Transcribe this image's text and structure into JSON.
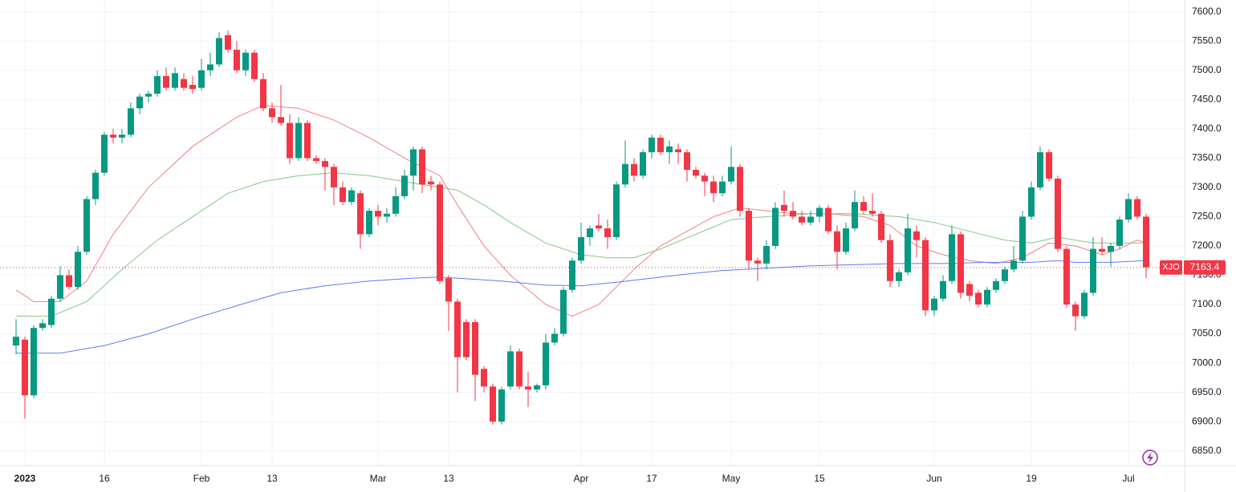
{
  "chart_data": {
    "type": "candlestick",
    "symbol": "XJO",
    "last_price": 7163.4,
    "up_color": "#089981",
    "down_color": "#f23645",
    "grid": true,
    "ylim": [
      6825,
      7620
    ],
    "yticks": [
      {
        "value": 6850,
        "label": "6850.0"
      },
      {
        "value": 6900,
        "label": "6900.0"
      },
      {
        "value": 6950,
        "label": "6950.0"
      },
      {
        "value": 7000,
        "label": "7000.0"
      },
      {
        "value": 7050,
        "label": "7050.0"
      },
      {
        "value": 7100,
        "label": "7100.0"
      },
      {
        "value": 7150,
        "label": "7150.0"
      },
      {
        "value": 7200,
        "label": "7200.0"
      },
      {
        "value": 7250,
        "label": "7250.0"
      },
      {
        "value": 7300,
        "label": "7300.0"
      },
      {
        "value": 7350,
        "label": "7350.0"
      },
      {
        "value": 7400,
        "label": "7400.0"
      },
      {
        "value": 7450,
        "label": "7450.0"
      },
      {
        "value": 7500,
        "label": "7500.0"
      },
      {
        "value": 7550,
        "label": "7550.0"
      },
      {
        "value": 7600,
        "label": "7600.0"
      }
    ],
    "categories": [
      null,
      "2023",
      null,
      null,
      null,
      null,
      null,
      null,
      null,
      null,
      "16",
      null,
      null,
      null,
      null,
      null,
      null,
      null,
      null,
      null,
      null,
      "Feb",
      null,
      null,
      null,
      null,
      null,
      null,
      null,
      "13",
      null,
      null,
      null,
      null,
      null,
      null,
      null,
      null,
      null,
      null,
      null,
      "Mar",
      null,
      null,
      null,
      null,
      null,
      null,
      null,
      "13",
      null,
      null,
      null,
      null,
      null,
      null,
      null,
      null,
      null,
      null,
      null,
      null,
      null,
      null,
      "Apr",
      null,
      null,
      null,
      null,
      null,
      null,
      null,
      "17",
      null,
      null,
      null,
      null,
      null,
      null,
      null,
      null,
      "May",
      null,
      null,
      null,
      null,
      null,
      null,
      null,
      null,
      null,
      "15",
      null,
      null,
      null,
      null,
      null,
      null,
      null,
      null,
      null,
      null,
      null,
      null,
      "Jun",
      null,
      null,
      null,
      null,
      null,
      null,
      null,
      null,
      null,
      null,
      "19",
      null,
      null,
      null,
      null,
      null,
      null,
      null,
      null,
      null,
      null,
      "Jul",
      null,
      null
    ],
    "open": [
      7030,
      7040,
      6945,
      7060,
      7065,
      7110,
      7150,
      7130,
      7190,
      7280,
      7325,
      7390,
      7385,
      7390,
      7435,
      7455,
      7460,
      7490,
      7470,
      7485,
      7475,
      7470,
      7500,
      7510,
      7560,
      7535,
      7500,
      7530,
      7485,
      7435,
      7420,
      7410,
      7350,
      7410,
      7350,
      7345,
      7335,
      7300,
      7275,
      7290,
      7220,
      7260,
      7250,
      7255,
      7285,
      7320,
      7365,
      7310,
      7305,
      7145,
      7105,
      7070,
      7070,
      6990,
      6960,
      6900,
      6960,
      7020,
      6960,
      6955,
      6962,
      7035,
      7050,
      7125,
      7175,
      7215,
      7235,
      7230,
      7215,
      7305,
      7340,
      7320,
      7360,
      7385,
      7360,
      7365,
      7360,
      7330,
      7320,
      7310,
      7290,
      7310,
      7335,
      7260,
      7175,
      7170,
      7200,
      7270,
      7260,
      7250,
      7240,
      7250,
      7265,
      7225,
      7190,
      7230,
      7275,
      7260,
      7255,
      7210,
      7140,
      7155,
      7225,
      7210,
      7090,
      7110,
      7140,
      7220,
      7135,
      7120,
      7100,
      7125,
      7140,
      7160,
      7175,
      7250,
      7300,
      7360,
      7315,
      7195,
      7100,
      7080,
      7120,
      7195,
      7190,
      7200,
      7245,
      7280,
      7250
    ],
    "high": [
      7075,
      7045,
      7065,
      7075,
      7115,
      7165,
      7160,
      7200,
      7285,
      7330,
      7395,
      7400,
      7400,
      7445,
      7460,
      7465,
      7500,
      7505,
      7505,
      7495,
      7490,
      7520,
      7530,
      7565,
      7568,
      7550,
      7535,
      7535,
      7495,
      7445,
      7475,
      7425,
      7420,
      7415,
      7355,
      7350,
      7340,
      7310,
      7300,
      7295,
      7265,
      7270,
      7265,
      7300,
      7330,
      7370,
      7370,
      7320,
      7310,
      7150,
      7110,
      7075,
      7075,
      6995,
      6965,
      6960,
      7030,
      7025,
      6985,
      6965,
      7050,
      7060,
      7130,
      7180,
      7240,
      7235,
      7255,
      7245,
      7310,
      7380,
      7350,
      7365,
      7390,
      7390,
      7380,
      7375,
      7365,
      7335,
      7325,
      7320,
      7320,
      7370,
      7340,
      7265,
      7180,
      7210,
      7275,
      7295,
      7275,
      7260,
      7260,
      7270,
      7270,
      7235,
      7240,
      7295,
      7285,
      7290,
      7260,
      7220,
      7160,
      7255,
      7235,
      7215,
      7115,
      7150,
      7235,
      7225,
      7140,
      7125,
      7130,
      7145,
      7165,
      7200,
      7260,
      7310,
      7370,
      7365,
      7320,
      7200,
      7105,
      7125,
      7215,
      7215,
      7205,
      7250,
      7290,
      7285,
      7255
    ],
    "low": [
      7015,
      6905,
      6940,
      7055,
      7060,
      7105,
      7125,
      7125,
      7185,
      7270,
      7320,
      7375,
      7375,
      7385,
      7425,
      7445,
      7455,
      7465,
      7465,
      7465,
      7460,
      7465,
      7490,
      7505,
      7530,
      7495,
      7490,
      7480,
      7430,
      7410,
      7405,
      7340,
      7345,
      7345,
      7340,
      7295,
      7270,
      7270,
      7270,
      7195,
      7215,
      7235,
      7240,
      7250,
      7280,
      7295,
      7290,
      7295,
      7135,
      7055,
      6950,
      7005,
      6935,
      6950,
      6895,
      6895,
      6955,
      6955,
      6925,
      6950,
      6955,
      7030,
      7045,
      7120,
      7170,
      7200,
      7225,
      7195,
      7210,
      7300,
      7310,
      7315,
      7350,
      7355,
      7340,
      7340,
      7310,
      7315,
      7285,
      7275,
      7285,
      7305,
      7250,
      7160,
      7140,
      7160,
      7195,
      7250,
      7245,
      7235,
      7235,
      7240,
      7220,
      7160,
      7185,
      7225,
      7255,
      7250,
      7205,
      7130,
      7130,
      7150,
      7180,
      7080,
      7080,
      7105,
      7135,
      7110,
      7105,
      7095,
      7095,
      7120,
      7135,
      7155,
      7170,
      7245,
      7295,
      7310,
      7190,
      7095,
      7055,
      7075,
      7115,
      7185,
      7165,
      7195,
      7240,
      7245,
      7145
    ],
    "close": [
      7045,
      6945,
      7060,
      7068,
      7110,
      7150,
      7130,
      7190,
      7280,
      7325,
      7390,
      7385,
      7390,
      7435,
      7455,
      7460,
      7490,
      7470,
      7495,
      7470,
      7468,
      7500,
      7510,
      7555,
      7535,
      7500,
      7530,
      7485,
      7435,
      7420,
      7410,
      7350,
      7410,
      7350,
      7345,
      7335,
      7300,
      7275,
      7295,
      7220,
      7260,
      7250,
      7255,
      7285,
      7320,
      7365,
      7305,
      7305,
      7140,
      7105,
      7010,
      7010,
      6980,
      6960,
      6900,
      6955,
      7020,
      6960,
      6955,
      6962,
      7035,
      7050,
      7125,
      7175,
      7215,
      7230,
      7230,
      7215,
      7305,
      7340,
      7320,
      7360,
      7385,
      7360,
      7370,
      7360,
      7330,
      7320,
      7310,
      7290,
      7310,
      7335,
      7260,
      7175,
      7170,
      7200,
      7265,
      7260,
      7250,
      7240,
      7250,
      7265,
      7225,
      7190,
      7230,
      7275,
      7260,
      7255,
      7210,
      7140,
      7155,
      7230,
      7210,
      7090,
      7110,
      7140,
      7220,
      7120,
      7115,
      7100,
      7125,
      7140,
      7160,
      7175,
      7250,
      7300,
      7360,
      7315,
      7195,
      7100,
      7080,
      7120,
      7195,
      7190,
      7200,
      7245,
      7280,
      7250,
      7163.4
    ],
    "lines": [
      {
        "color": "#f77c80",
        "x": [
          0,
          2,
          5,
          8,
          11,
          15,
          20,
          25,
          28,
          32,
          36,
          40,
          44,
          48,
          50,
          53,
          56,
          60,
          63,
          66,
          68,
          70,
          73,
          76,
          79,
          82,
          85,
          88,
          92,
          96,
          99,
          102,
          105,
          108,
          111,
          114,
          117,
          120,
          123,
          125,
          127,
          128
        ],
        "values": [
          7125,
          7105,
          7105,
          7140,
          7220,
          7300,
          7370,
          7420,
          7440,
          7435,
          7415,
          7385,
          7350,
          7320,
          7270,
          7200,
          7150,
          7100,
          7080,
          7100,
          7130,
          7160,
          7200,
          7225,
          7250,
          7265,
          7260,
          7255,
          7255,
          7250,
          7235,
          7200,
          7185,
          7175,
          7170,
          7180,
          7205,
          7200,
          7185,
          7195,
          7210,
          7205
        ]
      },
      {
        "color": "#81c784",
        "x": [
          0,
          4,
          8,
          12,
          16,
          20,
          24,
          28,
          32,
          36,
          40,
          44,
          48,
          50,
          53,
          56,
          60,
          64,
          67,
          70,
          73,
          77,
          81,
          85,
          90,
          95,
          100,
          104,
          108,
          112,
          115,
          118,
          122,
          125,
          128
        ],
        "values": [
          7080,
          7080,
          7105,
          7160,
          7210,
          7250,
          7290,
          7310,
          7320,
          7325,
          7320,
          7310,
          7300,
          7295,
          7270,
          7240,
          7205,
          7185,
          7180,
          7180,
          7195,
          7220,
          7245,
          7250,
          7255,
          7255,
          7250,
          7240,
          7225,
          7210,
          7205,
          7215,
          7205,
          7205,
          7205
        ]
      },
      {
        "color": "#5b7cf2",
        "x": [
          0,
          5,
          10,
          15,
          20,
          25,
          30,
          35,
          40,
          45,
          48,
          50,
          55,
          60,
          64,
          68,
          72,
          76,
          80,
          85,
          90,
          95,
          100,
          105,
          110,
          115,
          118,
          120,
          124,
          128
        ],
        "values": [
          7017,
          7017,
          7030,
          7050,
          7075,
          7098,
          7120,
          7132,
          7140,
          7145,
          7147,
          7145,
          7140,
          7133,
          7132,
          7138,
          7145,
          7152,
          7158,
          7162,
          7166,
          7168,
          7170,
          7170,
          7172,
          7172,
          7175,
          7172,
          7172,
          7175
        ]
      }
    ]
  }
}
